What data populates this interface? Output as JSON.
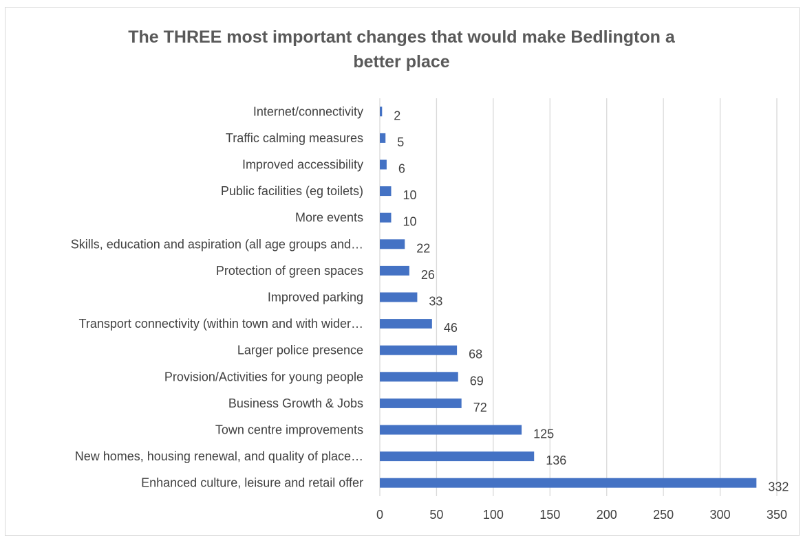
{
  "chart_data": {
    "type": "bar",
    "orientation": "horizontal",
    "title_lines": [
      "The THREE most important changes that would make Bedlington a",
      "better place"
    ],
    "categories": [
      "Enhanced culture, leisure and retail offer",
      "New homes, housing renewal, and quality of place…",
      "Town centre improvements",
      "Business Growth & Jobs",
      "Provision/Activities for young people",
      "Larger police presence",
      "Transport connectivity (within town and with wider…",
      "Improved parking",
      "Protection of green spaces",
      "Skills, education and aspiration (all age groups and…",
      "More events",
      "Public facilities (eg toilets)",
      "Improved accessibility",
      "Traffic calming measures",
      "Internet/connectivity"
    ],
    "values": [
      332,
      136,
      125,
      72,
      69,
      68,
      46,
      33,
      26,
      22,
      10,
      10,
      6,
      5,
      2
    ],
    "xlim": [
      0,
      350
    ],
    "xticks": [
      0,
      50,
      100,
      150,
      200,
      250,
      300,
      350
    ],
    "grid": true,
    "data_labels": true,
    "legend": "none",
    "colors": {
      "bar": "#4472c4",
      "grid": "#d9d9d9",
      "text": "#404040",
      "title": "#595959"
    }
  }
}
